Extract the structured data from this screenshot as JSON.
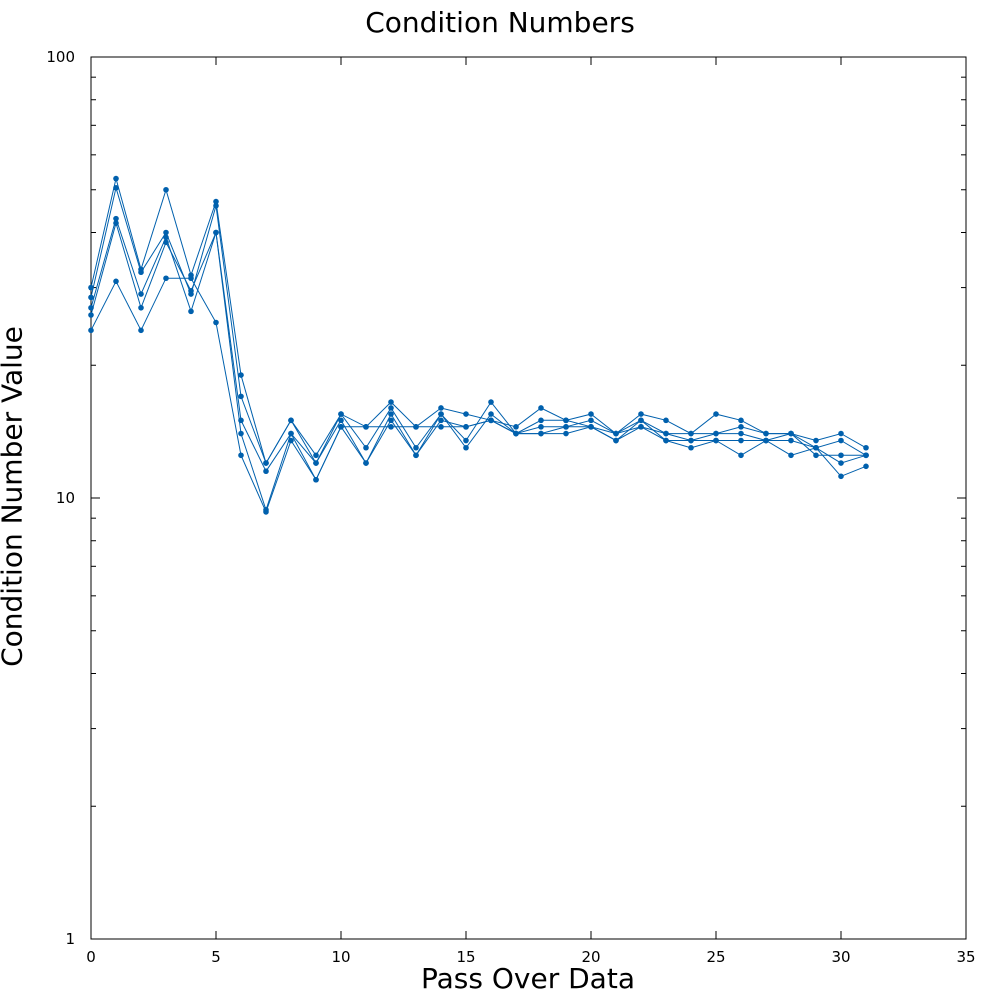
{
  "chart_data": {
    "type": "line",
    "title": "Condition Numbers",
    "xlabel": "Pass Over Data",
    "ylabel": "Condition Number Value",
    "xlim": [
      0,
      35
    ],
    "ylim": [
      1,
      100
    ],
    "yscale": "log",
    "xticks": [
      0,
      5,
      10,
      15,
      20,
      25,
      30,
      35
    ],
    "yticks": [
      1,
      10,
      100
    ],
    "grid": false,
    "legend": "none",
    "color": "#0060ad",
    "x": [
      0,
      1,
      2,
      3,
      4,
      5,
      6,
      7,
      8,
      9,
      10,
      11,
      12,
      13,
      14,
      15,
      16,
      17,
      18,
      19,
      20,
      21,
      22,
      23,
      24,
      25,
      26,
      27,
      28,
      29,
      30,
      31
    ],
    "series": [
      {
        "values": [
          30,
          53,
          33,
          50,
          32,
          47,
          19,
          12,
          15,
          12.5,
          15.5,
          14.5,
          16.5,
          14.5,
          16,
          15.5,
          15,
          14.5,
          16,
          15,
          15.5,
          14,
          15.5,
          15,
          14,
          15.5,
          15,
          14,
          14,
          13.5,
          14,
          13
        ]
      },
      {
        "values": [
          28.5,
          50.5,
          32.5,
          40,
          29,
          46,
          17,
          12,
          15,
          12,
          15.5,
          13,
          16,
          13,
          15.5,
          13.5,
          16.5,
          14,
          14.5,
          14.5,
          15,
          14,
          15,
          14,
          14,
          14,
          14.5,
          14,
          14,
          13,
          13.5,
          12.5
        ]
      },
      {
        "values": [
          27,
          43,
          29,
          39,
          26.5,
          40,
          15,
          11.5,
          14,
          12,
          15,
          12,
          15.5,
          12.5,
          15.5,
          13,
          15.5,
          14,
          15,
          15,
          14.5,
          13.5,
          15,
          13.5,
          13.5,
          14,
          14,
          13.5,
          14,
          12.5,
          12.5,
          12.5
        ]
      },
      {
        "values": [
          26,
          42,
          27,
          38,
          29.5,
          40,
          14,
          9.4,
          14,
          11,
          14.5,
          12,
          15,
          12.5,
          15,
          14.5,
          15,
          14,
          14,
          14.5,
          14.5,
          13.5,
          14.5,
          13.5,
          13,
          13.5,
          12.5,
          13.5,
          13.5,
          13,
          11.2,
          11.8
        ]
      },
      {
        "values": [
          24,
          31,
          24,
          31.5,
          31.5,
          25,
          12.5,
          9.3,
          13.5,
          11,
          14.5,
          14.5,
          14.5,
          14.5,
          14.5,
          14.5,
          15,
          14,
          14,
          14,
          14.5,
          14,
          14.5,
          14,
          13.5,
          13.5,
          13.5,
          13.5,
          12.5,
          13,
          12,
          12.5
        ]
      }
    ]
  }
}
